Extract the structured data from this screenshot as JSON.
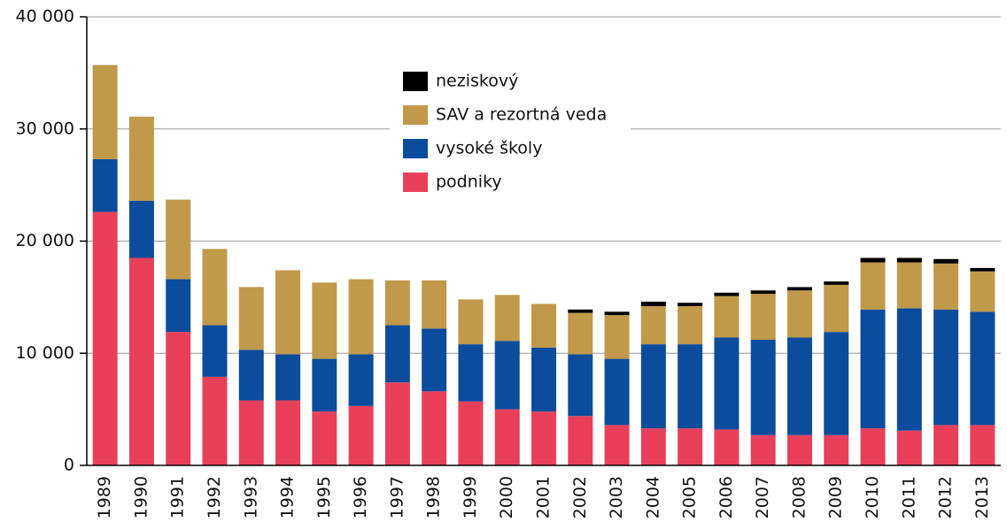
{
  "chart_data": {
    "type": "stacked_bar",
    "categories": [
      "1989",
      "1990",
      "1991",
      "1992",
      "1993",
      "1994",
      "1995",
      "1996",
      "1997",
      "1998",
      "1999",
      "2000",
      "2001",
      "2002",
      "2003",
      "2004",
      "2005",
      "2006",
      "2007",
      "2008",
      "2009",
      "2010",
      "2011",
      "2012",
      "2013"
    ],
    "series": [
      {
        "name": "podniky",
        "color": "#e8405a",
        "values": [
          22600,
          18500,
          11900,
          7900,
          5800,
          5800,
          4800,
          5300,
          7400,
          6600,
          5700,
          5000,
          4800,
          4400,
          3600,
          3300,
          3300,
          3200,
          2700,
          2700,
          2700,
          3300,
          3100,
          3600,
          3600
        ]
      },
      {
        "name": "vysoké školy",
        "color": "#0b4c9c",
        "values": [
          4700,
          5100,
          4700,
          4600,
          4500,
          4100,
          4700,
          4600,
          5100,
          5600,
          5100,
          6100,
          5700,
          5500,
          5900,
          7500,
          7500,
          8200,
          8500,
          8700,
          9200,
          10600,
          10900,
          10300,
          10100
        ]
      },
      {
        "name": "SAV a rezortná veda",
        "color": "#c0994a",
        "values": [
          8400,
          7500,
          7100,
          6800,
          5600,
          7500,
          6800,
          6700,
          4000,
          4300,
          4000,
          4100,
          3900,
          3700,
          3900,
          3400,
          3400,
          3700,
          4100,
          4200,
          4200,
          4200,
          4100,
          4100,
          3600
        ]
      },
      {
        "name": "neziskový",
        "color": "#000000",
        "values": [
          0,
          0,
          0,
          0,
          0,
          0,
          0,
          0,
          0,
          0,
          0,
          0,
          0,
          300,
          300,
          400,
          300,
          300,
          300,
          300,
          300,
          400,
          400,
          400,
          300
        ]
      }
    ],
    "ylim": [
      0,
      40000
    ],
    "yticks": [
      0,
      {
        "value": 10000,
        "label": "10 000"
      },
      {
        "value": 20000,
        "label": "20 000"
      },
      {
        "value": 30000,
        "label": "30 000"
      },
      {
        "value": 40000,
        "label": "40 000"
      }
    ],
    "grid": true
  }
}
